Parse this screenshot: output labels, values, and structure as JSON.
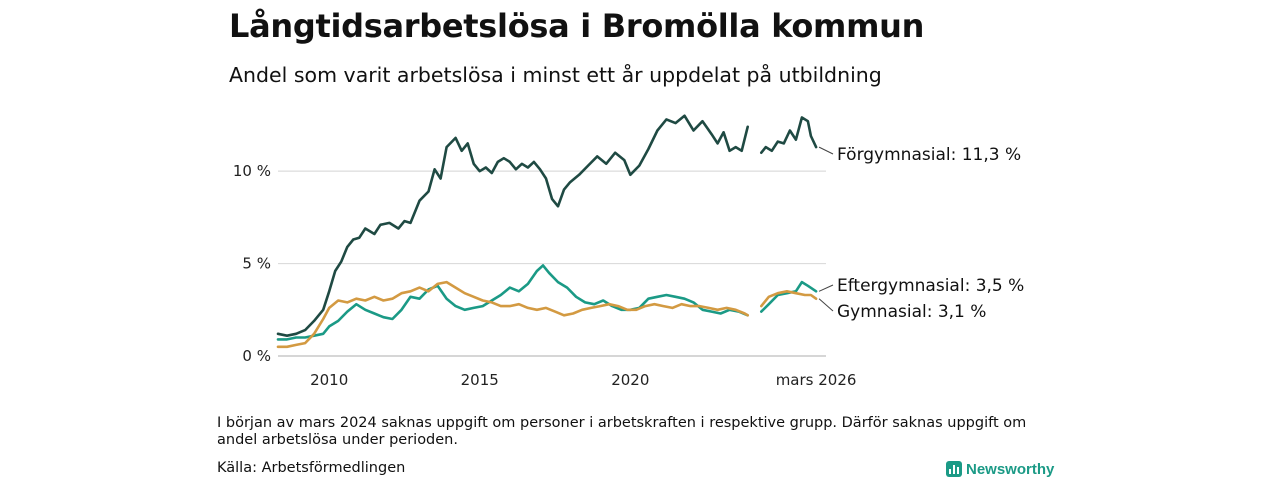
{
  "chart_data": {
    "type": "line",
    "title": "Långtidsarbetslösa i Bromölla kommun",
    "subtitle": "Andel som varit arbetslösa i minst ett år uppdelat på utbildning",
    "xlabel": "",
    "ylabel": "",
    "xlim": [
      2008.3,
      2026.5
    ],
    "ylim": [
      0,
      13.2
    ],
    "x_ticks": [
      {
        "value": 2010,
        "label": "2010"
      },
      {
        "value": 2015,
        "label": "2015"
      },
      {
        "value": 2020,
        "label": "2020"
      },
      {
        "value": 2026.17,
        "label": "mars 2026"
      }
    ],
    "y_ticks": [
      {
        "value": 0,
        "label": "0 %"
      },
      {
        "value": 5,
        "label": "5 %"
      },
      {
        "value": 10,
        "label": "10 %"
      }
    ],
    "gap": [
      2024.0,
      2024.35
    ],
    "series": [
      {
        "name": "Förgymnasial",
        "end_label": "Förgymnasial: 11,3 %",
        "color": "#1f4a43",
        "points": [
          [
            2008.3,
            1.2
          ],
          [
            2008.6,
            1.1
          ],
          [
            2008.9,
            1.2
          ],
          [
            2009.2,
            1.4
          ],
          [
            2009.5,
            1.9
          ],
          [
            2009.8,
            2.5
          ],
          [
            2010.0,
            3.5
          ],
          [
            2010.2,
            4.6
          ],
          [
            2010.4,
            5.1
          ],
          [
            2010.6,
            5.9
          ],
          [
            2010.8,
            6.3
          ],
          [
            2011.0,
            6.4
          ],
          [
            2011.2,
            6.9
          ],
          [
            2011.5,
            6.6
          ],
          [
            2011.7,
            7.1
          ],
          [
            2012.0,
            7.2
          ],
          [
            2012.3,
            6.9
          ],
          [
            2012.5,
            7.3
          ],
          [
            2012.7,
            7.2
          ],
          [
            2013.0,
            8.4
          ],
          [
            2013.3,
            8.9
          ],
          [
            2013.5,
            10.1
          ],
          [
            2013.7,
            9.6
          ],
          [
            2013.9,
            11.3
          ],
          [
            2014.2,
            11.8
          ],
          [
            2014.4,
            11.1
          ],
          [
            2014.6,
            11.5
          ],
          [
            2014.8,
            10.4
          ],
          [
            2015.0,
            10.0
          ],
          [
            2015.2,
            10.2
          ],
          [
            2015.4,
            9.9
          ],
          [
            2015.6,
            10.5
          ],
          [
            2015.8,
            10.7
          ],
          [
            2016.0,
            10.5
          ],
          [
            2016.2,
            10.1
          ],
          [
            2016.4,
            10.4
          ],
          [
            2016.6,
            10.2
          ],
          [
            2016.8,
            10.5
          ],
          [
            2017.0,
            10.1
          ],
          [
            2017.2,
            9.6
          ],
          [
            2017.4,
            8.5
          ],
          [
            2017.6,
            8.1
          ],
          [
            2017.8,
            9.0
          ],
          [
            2018.0,
            9.4
          ],
          [
            2018.3,
            9.8
          ],
          [
            2018.6,
            10.3
          ],
          [
            2018.9,
            10.8
          ],
          [
            2019.2,
            10.4
          ],
          [
            2019.5,
            11.0
          ],
          [
            2019.8,
            10.6
          ],
          [
            2020.0,
            9.8
          ],
          [
            2020.3,
            10.3
          ],
          [
            2020.6,
            11.2
          ],
          [
            2020.9,
            12.2
          ],
          [
            2021.2,
            12.8
          ],
          [
            2021.5,
            12.6
          ],
          [
            2021.8,
            13.0
          ],
          [
            2022.1,
            12.2
          ],
          [
            2022.4,
            12.7
          ],
          [
            2022.7,
            12.0
          ],
          [
            2022.9,
            11.5
          ],
          [
            2023.1,
            12.1
          ],
          [
            2023.3,
            11.1
          ],
          [
            2023.5,
            11.3
          ],
          [
            2023.7,
            11.1
          ],
          [
            2023.9,
            12.4
          ],
          [
            2024.35,
            11.0
          ],
          [
            2024.5,
            11.3
          ],
          [
            2024.7,
            11.1
          ],
          [
            2024.9,
            11.6
          ],
          [
            2025.1,
            11.5
          ],
          [
            2025.3,
            12.2
          ],
          [
            2025.5,
            11.7
          ],
          [
            2025.7,
            12.9
          ],
          [
            2025.9,
            12.7
          ],
          [
            2026.0,
            11.9
          ],
          [
            2026.17,
            11.3
          ]
        ]
      },
      {
        "name": "Eftergymnasial",
        "end_label": "Eftergymnasial:  3,5 %",
        "color": "#1b9a86",
        "points": [
          [
            2008.3,
            0.9
          ],
          [
            2008.6,
            0.9
          ],
          [
            2008.9,
            1.0
          ],
          [
            2009.2,
            1.0
          ],
          [
            2009.5,
            1.1
          ],
          [
            2009.8,
            1.2
          ],
          [
            2010.0,
            1.6
          ],
          [
            2010.3,
            1.9
          ],
          [
            2010.6,
            2.4
          ],
          [
            2010.9,
            2.8
          ],
          [
            2011.2,
            2.5
          ],
          [
            2011.5,
            2.3
          ],
          [
            2011.8,
            2.1
          ],
          [
            2012.1,
            2.0
          ],
          [
            2012.4,
            2.5
          ],
          [
            2012.7,
            3.2
          ],
          [
            2013.0,
            3.1
          ],
          [
            2013.3,
            3.6
          ],
          [
            2013.6,
            3.8
          ],
          [
            2013.9,
            3.1
          ],
          [
            2014.2,
            2.7
          ],
          [
            2014.5,
            2.5
          ],
          [
            2014.8,
            2.6
          ],
          [
            2015.1,
            2.7
          ],
          [
            2015.4,
            3.0
          ],
          [
            2015.7,
            3.3
          ],
          [
            2016.0,
            3.7
          ],
          [
            2016.3,
            3.5
          ],
          [
            2016.6,
            3.9
          ],
          [
            2016.9,
            4.6
          ],
          [
            2017.1,
            4.9
          ],
          [
            2017.3,
            4.5
          ],
          [
            2017.6,
            4.0
          ],
          [
            2017.9,
            3.7
          ],
          [
            2018.2,
            3.2
          ],
          [
            2018.5,
            2.9
          ],
          [
            2018.8,
            2.8
          ],
          [
            2019.1,
            3.0
          ],
          [
            2019.4,
            2.7
          ],
          [
            2019.7,
            2.5
          ],
          [
            2020.0,
            2.5
          ],
          [
            2020.3,
            2.6
          ],
          [
            2020.6,
            3.1
          ],
          [
            2020.9,
            3.2
          ],
          [
            2021.2,
            3.3
          ],
          [
            2021.5,
            3.2
          ],
          [
            2021.8,
            3.1
          ],
          [
            2022.1,
            2.9
          ],
          [
            2022.4,
            2.5
          ],
          [
            2022.7,
            2.4
          ],
          [
            2023.0,
            2.3
          ],
          [
            2023.3,
            2.5
          ],
          [
            2023.6,
            2.4
          ],
          [
            2023.9,
            2.2
          ],
          [
            2024.35,
            2.4
          ],
          [
            2024.6,
            2.8
          ],
          [
            2024.9,
            3.3
          ],
          [
            2025.2,
            3.4
          ],
          [
            2025.5,
            3.5
          ],
          [
            2025.7,
            4.0
          ],
          [
            2025.9,
            3.8
          ],
          [
            2026.17,
            3.5
          ]
        ]
      },
      {
        "name": "Gymnasial",
        "end_label": "Gymnasial:  3,1 %",
        "color": "#d39a42",
        "points": [
          [
            2008.3,
            0.5
          ],
          [
            2008.6,
            0.5
          ],
          [
            2008.9,
            0.6
          ],
          [
            2009.2,
            0.7
          ],
          [
            2009.5,
            1.2
          ],
          [
            2009.8,
            2.0
          ],
          [
            2010.0,
            2.6
          ],
          [
            2010.3,
            3.0
          ],
          [
            2010.6,
            2.9
          ],
          [
            2010.9,
            3.1
          ],
          [
            2011.2,
            3.0
          ],
          [
            2011.5,
            3.2
          ],
          [
            2011.8,
            3.0
          ],
          [
            2012.1,
            3.1
          ],
          [
            2012.4,
            3.4
          ],
          [
            2012.7,
            3.5
          ],
          [
            2013.0,
            3.7
          ],
          [
            2013.3,
            3.5
          ],
          [
            2013.6,
            3.9
          ],
          [
            2013.9,
            4.0
          ],
          [
            2014.2,
            3.7
          ],
          [
            2014.5,
            3.4
          ],
          [
            2014.8,
            3.2
          ],
          [
            2015.1,
            3.0
          ],
          [
            2015.4,
            2.9
          ],
          [
            2015.7,
            2.7
          ],
          [
            2016.0,
            2.7
          ],
          [
            2016.3,
            2.8
          ],
          [
            2016.6,
            2.6
          ],
          [
            2016.9,
            2.5
          ],
          [
            2017.2,
            2.6
          ],
          [
            2017.5,
            2.4
          ],
          [
            2017.8,
            2.2
          ],
          [
            2018.1,
            2.3
          ],
          [
            2018.4,
            2.5
          ],
          [
            2018.7,
            2.6
          ],
          [
            2019.0,
            2.7
          ],
          [
            2019.3,
            2.8
          ],
          [
            2019.6,
            2.7
          ],
          [
            2019.9,
            2.5
          ],
          [
            2020.2,
            2.5
          ],
          [
            2020.5,
            2.7
          ],
          [
            2020.8,
            2.8
          ],
          [
            2021.1,
            2.7
          ],
          [
            2021.4,
            2.6
          ],
          [
            2021.7,
            2.8
          ],
          [
            2022.0,
            2.7
          ],
          [
            2022.3,
            2.7
          ],
          [
            2022.6,
            2.6
          ],
          [
            2022.9,
            2.5
          ],
          [
            2023.2,
            2.6
          ],
          [
            2023.5,
            2.5
          ],
          [
            2023.8,
            2.3
          ],
          [
            2023.9,
            2.2
          ],
          [
            2024.35,
            2.7
          ],
          [
            2024.6,
            3.2
          ],
          [
            2024.9,
            3.4
          ],
          [
            2025.2,
            3.5
          ],
          [
            2025.5,
            3.4
          ],
          [
            2025.8,
            3.3
          ],
          [
            2026.0,
            3.3
          ],
          [
            2026.17,
            3.1
          ]
        ]
      }
    ]
  },
  "footer": {
    "note": "I början av mars 2024 saknas uppgift om personer i arbetskraften i respektive grupp. Därför saknas uppgift om andel arbetslösa under perioden.",
    "source": "Källa: Arbetsförmedlingen",
    "brand": "Newsworthy",
    "brand_color": "#1b9a86"
  }
}
